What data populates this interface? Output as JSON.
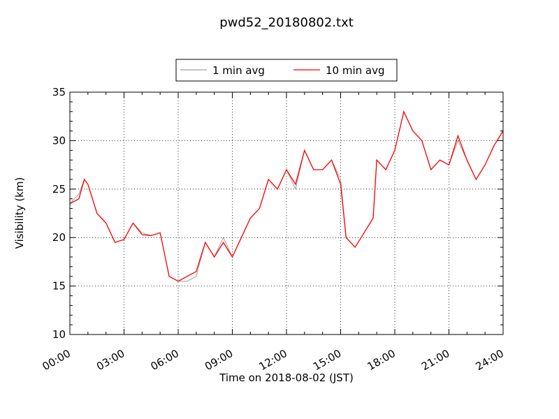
{
  "chart_data": {
    "type": "line",
    "title": "pwd52_20180802.txt",
    "xlabel": "Time on 2018-08-02 (JST)",
    "ylabel": "Visibility (km)",
    "xlim": [
      0,
      24
    ],
    "ylim": [
      10,
      35
    ],
    "x_ticks": [
      0,
      3,
      6,
      9,
      12,
      15,
      18,
      21,
      24
    ],
    "x_tick_labels": [
      "00:00",
      "03:00",
      "06:00",
      "09:00",
      "12:00",
      "15:00",
      "18:00",
      "21:00",
      "24:00"
    ],
    "y_ticks": [
      10,
      15,
      20,
      25,
      30,
      35
    ],
    "y_tick_labels": [
      "10",
      "15",
      "20",
      "25",
      "30",
      "35"
    ],
    "grid": true,
    "legend_position": "top-center",
    "series": [
      {
        "name": "1 min avg",
        "color": "#a0a0a0",
        "x": [
          0,
          0.5,
          0.8,
          1.0,
          1.5,
          2.0,
          2.5,
          3.0,
          3.5,
          4.0,
          4.5,
          5.0,
          5.5,
          6.0,
          6.5,
          7.0,
          7.5,
          8.0,
          8.5,
          9.0,
          9.5,
          10.0,
          10.5,
          11.0,
          11.5,
          12.0,
          12.5,
          13.0,
          13.5,
          14.0,
          14.5,
          15.0,
          15.3,
          15.8,
          16.3,
          16.8,
          17.0,
          17.5,
          18.0,
          18.5,
          19.0,
          19.5,
          20.0,
          20.5,
          21.0,
          21.5,
          22.0,
          22.5,
          23.0,
          23.5,
          24.0
        ],
        "y": [
          23.5,
          24.5,
          26,
          25.5,
          22.5,
          21.5,
          19.5,
          19.8,
          21.5,
          20.5,
          20.2,
          20.5,
          16,
          15.5,
          15.5,
          16,
          19.5,
          18,
          20,
          18,
          20,
          22,
          23,
          26,
          25,
          27,
          25,
          29,
          27,
          27,
          28,
          26,
          20,
          19,
          20.5,
          22,
          28,
          27,
          29,
          33,
          31,
          30,
          27,
          28,
          27.5,
          30,
          28,
          26,
          27.5,
          29.5,
          31
        ]
      },
      {
        "name": "10 min avg",
        "color": "#ff0000",
        "x": [
          0,
          0.5,
          0.8,
          1.0,
          1.5,
          2.0,
          2.5,
          3.0,
          3.5,
          4.0,
          4.5,
          5.0,
          5.5,
          6.0,
          6.5,
          7.0,
          7.5,
          8.0,
          8.5,
          9.0,
          9.5,
          10.0,
          10.5,
          11.0,
          11.5,
          12.0,
          12.5,
          13.0,
          13.5,
          14.0,
          14.5,
          15.0,
          15.3,
          15.8,
          16.3,
          16.8,
          17.0,
          17.5,
          18.0,
          18.5,
          19.0,
          19.5,
          20.0,
          20.5,
          21.0,
          21.5,
          22.0,
          22.5,
          23.0,
          23.5,
          24.0
        ],
        "y": [
          23.5,
          24,
          26,
          25.5,
          22.5,
          21.5,
          19.5,
          19.8,
          21.5,
          20.3,
          20.2,
          20.5,
          16,
          15.5,
          16,
          16.5,
          19.5,
          18,
          19.5,
          18,
          20,
          22,
          23,
          26,
          25,
          27,
          25.5,
          29,
          27,
          27,
          28,
          25.5,
          20,
          19,
          20.5,
          22,
          28,
          27,
          29,
          33,
          31,
          30,
          27,
          28,
          27.5,
          30.5,
          28,
          26,
          27.5,
          29.5,
          31
        ]
      }
    ]
  }
}
